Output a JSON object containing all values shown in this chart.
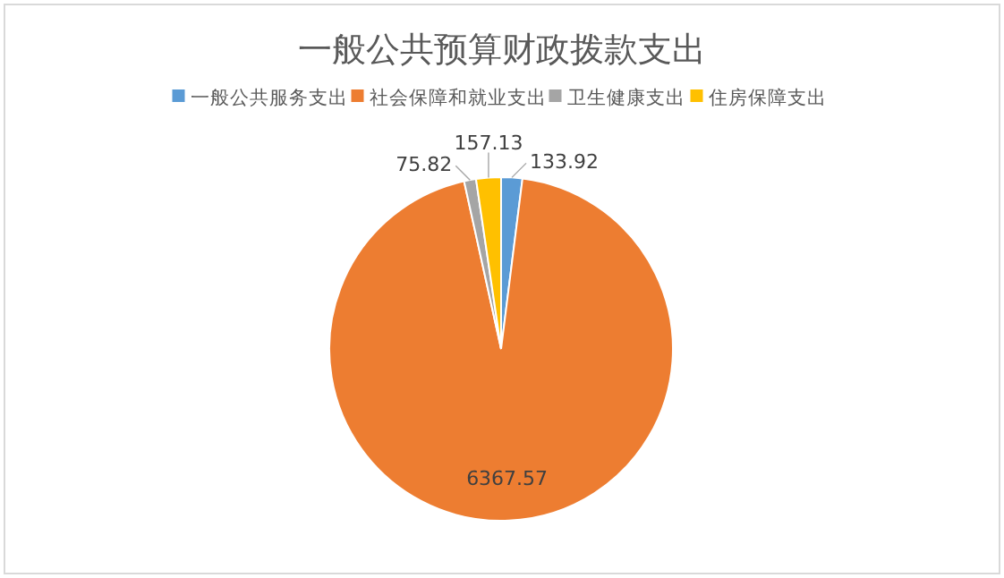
{
  "chart_data": {
    "type": "pie",
    "title": "一般公共预算财政拨款支出",
    "categories": [
      "一般公共服务支出",
      "社会保障和就业支出",
      "卫生健康支出",
      "住房保障支出"
    ],
    "values": [
      133.92,
      6367.57,
      75.82,
      157.13
    ],
    "colors": [
      "#5b9bd5",
      "#ed7d31",
      "#a5a5a5",
      "#ffc000"
    ],
    "data_labels": true,
    "legend": "top"
  }
}
